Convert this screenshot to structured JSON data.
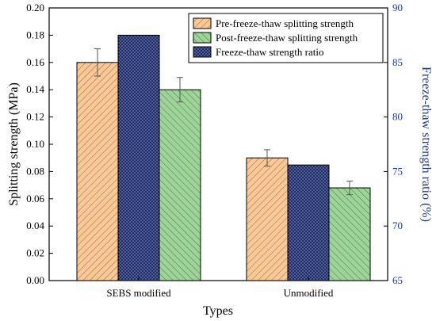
{
  "chart_data": {
    "type": "bar",
    "xlabel": "Types",
    "ylabel": "Splitting strength (MPa)",
    "y2label": "Freeze-thaw strength ratio (%)",
    "categories": [
      "SEBS modified",
      "Unmodified"
    ],
    "ylim": [
      0.0,
      0.2
    ],
    "y2lim": [
      65,
      90
    ],
    "yticks": [
      "0.00",
      "0.02",
      "0.04",
      "0.06",
      "0.08",
      "0.10",
      "0.12",
      "0.14",
      "0.16",
      "0.18",
      "0.20"
    ],
    "y2ticks": [
      "65",
      "70",
      "75",
      "80",
      "85",
      "90"
    ],
    "legend_position": "top-right",
    "series": [
      {
        "name": "Pre-freeze-thaw splitting strength",
        "axis": "left",
        "values": [
          0.16,
          0.09
        ],
        "errors": [
          0.01,
          0.006
        ],
        "fill": "#f9c99a",
        "hatch": "diag-right",
        "hatch_color": "#a0672e"
      },
      {
        "name": "Freeze-thaw strength ratio",
        "axis": "right",
        "values": [
          87.5,
          75.6
        ],
        "errors": [
          0,
          0
        ],
        "fill": "#1b2550",
        "hatch": "cross",
        "hatch_color": "#6d7fd0"
      },
      {
        "name": "Post-freeze-thaw splitting strength",
        "axis": "left",
        "values": [
          0.14,
          0.068
        ],
        "errors": [
          0.009,
          0.005
        ],
        "fill": "#9fd39a",
        "hatch": "diag-left",
        "hatch_color": "#3f7f3a"
      }
    ],
    "legend_order": [
      0,
      2,
      1
    ]
  }
}
